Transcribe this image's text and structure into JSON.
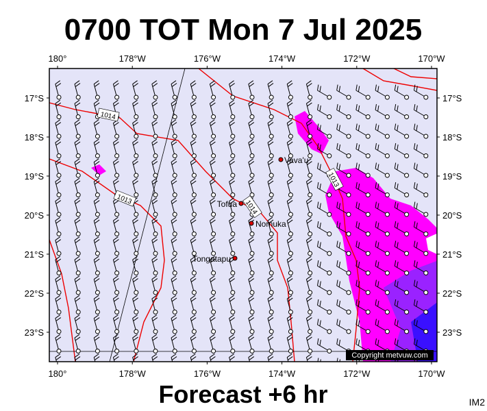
{
  "header": {
    "title": "0700 TOT Mon 7 Jul 2025"
  },
  "map": {
    "lon_labels": [
      "180°",
      "178°W",
      "176°W",
      "174°W",
      "172°W",
      "170°W"
    ],
    "lat_labels": [
      "17°S",
      "18°S",
      "19°S",
      "20°S",
      "21°S",
      "22°S",
      "23°S"
    ],
    "places": [
      {
        "label": "Vava'u"
      },
      {
        "label": "Tofua"
      },
      {
        "label": "Nomuka"
      },
      {
        "label": "Tongatapu"
      }
    ],
    "isobar_labels": [
      "1014",
      "1013",
      "1014",
      "1013"
    ],
    "copyright": "Copyright metvuw.com"
  },
  "footer": {
    "caption": "Forecast +6 hr",
    "code": "IM2"
  }
}
